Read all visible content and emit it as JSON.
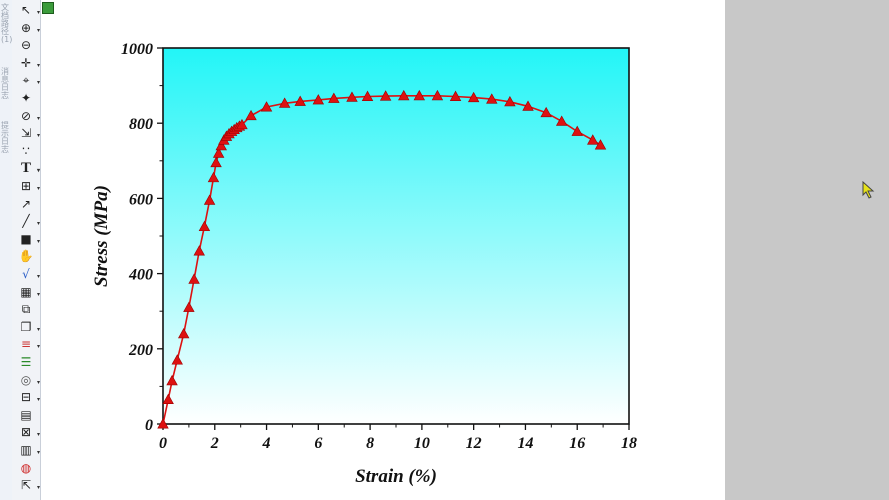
{
  "app": {
    "left_strip_text": [
      "文档路径(1)",
      "消息日志",
      "提示日志"
    ]
  },
  "toolbar": {
    "icons": [
      "pointer-icon",
      "zoom-in-icon",
      "zoom-out-icon",
      "scale-icon",
      "crosshair-icon",
      "data-reader-icon",
      "mask-icon",
      "select-range-icon",
      "draw-data-icon",
      "text-icon",
      "add-table-icon",
      "arrow-icon",
      "line-icon",
      "rectangle-icon",
      "hand-icon",
      "equation-icon",
      "layer-icon",
      "merge-icon",
      "stack-icon",
      "color-bar-icon",
      "color-scale-icon",
      "circle-icon",
      "break-icon",
      "data-info-icon",
      "legend-icon",
      "table-icon",
      "fit-icon",
      "export-icon"
    ]
  },
  "colors": {
    "accent": "#dd1111",
    "gradient_top": "#22f5f7",
    "gradient_bottom": "#ffffff",
    "right_panel": "#c8c8c8",
    "cursor": "#e6e21a"
  },
  "chart_data": {
    "type": "line",
    "xlabel": "Strain (%)",
    "ylabel": "Stress (MPa)",
    "xlim": [
      0,
      18
    ],
    "ylim": [
      0,
      1000
    ],
    "xticks": [
      "0",
      "2",
      "4",
      "6",
      "8",
      "10",
      "12",
      "14",
      "16",
      "18"
    ],
    "yticks": [
      "0",
      "200",
      "400",
      "600",
      "800",
      "1000"
    ],
    "marker": "triangle",
    "series": [
      {
        "x": [
          0.0,
          0.2,
          0.35,
          0.55,
          0.8,
          1.0,
          1.2,
          1.4,
          1.6,
          1.8,
          1.95,
          2.05,
          2.15,
          2.25,
          2.35,
          2.45,
          2.55,
          2.65,
          2.75,
          2.85,
          2.95,
          3.05,
          3.4,
          4.0,
          4.7,
          5.3,
          6.0,
          6.6,
          7.3,
          7.9,
          8.6,
          9.3,
          9.9,
          10.6,
          11.3,
          12.0,
          12.7,
          13.4,
          14.1,
          14.8,
          15.4,
          16.0,
          16.6,
          16.9
        ],
        "y": [
          0,
          65,
          115,
          170,
          240,
          310,
          385,
          460,
          525,
          595,
          655,
          695,
          720,
          740,
          755,
          765,
          772,
          778,
          783,
          788,
          792,
          796,
          820,
          843,
          853,
          858,
          862,
          866,
          869,
          871,
          872,
          873,
          873,
          873,
          871,
          868,
          864,
          857,
          845,
          828,
          805,
          778,
          755,
          742
        ]
      }
    ]
  }
}
